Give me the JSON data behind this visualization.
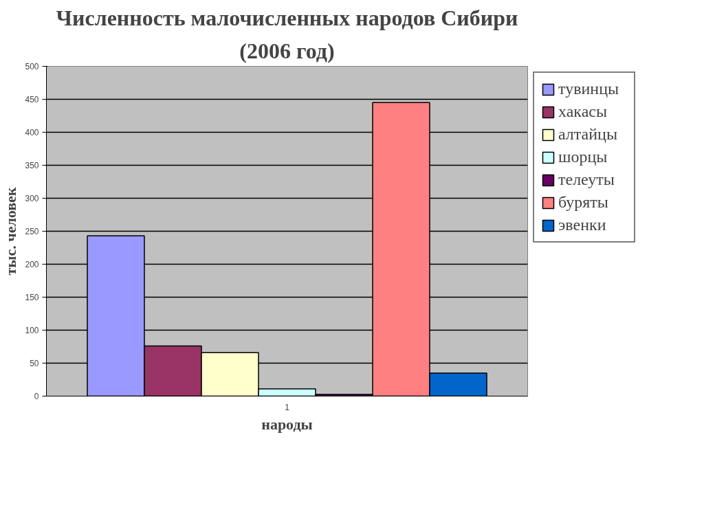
{
  "chart_data": {
    "type": "bar",
    "title": "Численность малочисленных народов Сибири",
    "subtitle": "(2006 год)",
    "xlabel": "народы",
    "ylabel": "тыс. человек",
    "categories": [
      "1"
    ],
    "series": [
      {
        "name": "тувинцы",
        "color": "#9999ff",
        "values": [
          243
        ]
      },
      {
        "name": "хакасы",
        "color": "#993366",
        "values": [
          76
        ]
      },
      {
        "name": "алтайцы",
        "color": "#ffffcc",
        "values": [
          66
        ]
      },
      {
        "name": "шорцы",
        "color": "#ccffff",
        "values": [
          11
        ]
      },
      {
        "name": "телеуты",
        "color": "#660066",
        "values": [
          2.5
        ]
      },
      {
        "name": "буряты",
        "color": "#ff8080",
        "values": [
          445
        ]
      },
      {
        "name": "эвенки",
        "color": "#0066cc",
        "values": [
          35
        ]
      }
    ],
    "ylim": [
      0,
      500
    ],
    "yticks": [
      0,
      50,
      100,
      150,
      200,
      250,
      300,
      350,
      400,
      450,
      500
    ],
    "grid": "y",
    "legend": "right"
  }
}
